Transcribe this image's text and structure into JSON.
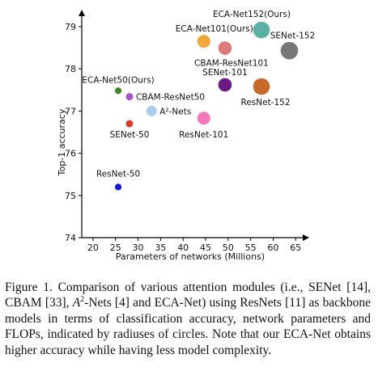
{
  "chart_data": {
    "type": "scatter",
    "xlabel": "Parameters of networks (Millions)",
    "ylabel": "Top-1 accuracy",
    "xlim": [
      17.5,
      68
    ],
    "ylim": [
      74,
      79.4
    ],
    "xticks": [
      "20",
      "25",
      "30",
      "35",
      "40",
      "45",
      "50",
      "55",
      "60",
      "65"
    ],
    "yticks": [
      "74",
      "75",
      "76",
      "77",
      "78",
      "79"
    ],
    "grid": false,
    "points": [
      {
        "label": "ResNet-50",
        "x": 25.6,
        "y": 75.2,
        "size": 4.1,
        "color": "#1515e6"
      },
      {
        "label": "SENet-50",
        "x": 28.1,
        "y": 76.7,
        "size": 4.5,
        "color": "#d93a2b"
      },
      {
        "label": "ECA-Net50(Ours)",
        "x": 25.6,
        "y": 77.48,
        "size": 4.1,
        "color": "#3a8a24"
      },
      {
        "label": "CBAM-ResNet50",
        "x": 28.1,
        "y": 77.34,
        "size": 4.5,
        "color": "#a656c4"
      },
      {
        "label": "A²-Nets",
        "x": 33.0,
        "y": 77.0,
        "size": 6.5,
        "color": "#a9cdef"
      },
      {
        "label": "ResNet-101",
        "x": 44.6,
        "y": 76.83,
        "size": 8.0,
        "color": "#f07ab9"
      },
      {
        "label": "SENet-101",
        "x": 49.3,
        "y": 77.62,
        "size": 8.3,
        "color": "#6a1a80"
      },
      {
        "label": "CBAM-ResNet101",
        "x": 49.3,
        "y": 78.49,
        "size": 8.3,
        "color": "#de7b7b"
      },
      {
        "label": "ECA-Net101(Ours)",
        "x": 44.6,
        "y": 78.65,
        "size": 8.0,
        "color": "#f1a83a"
      },
      {
        "label": "ResNet-152",
        "x": 57.4,
        "y": 77.58,
        "size": 10.3,
        "color": "#c8692c"
      },
      {
        "label": "SENet-152",
        "x": 63.6,
        "y": 78.43,
        "size": 10.8,
        "color": "#777777"
      },
      {
        "label": "ECA-Net152(Ours)",
        "x": 57.4,
        "y": 78.92,
        "size": 10.3,
        "color": "#5bb0a3"
      }
    ]
  },
  "caption": {
    "prefix": "Figure 1. Comparison of various attention modules (i.e., SENet [14], CBAM [33], ",
    "a": "A",
    "sup": "2",
    "suffix": "-Nets [4] and ECA-Net) using ResNets [11] as backbone models in terms of classification accuracy, network parameters and FLOPs, indicated by radiuses of circles. Note that our ECA-Net obtains higher accuracy while having less model complexity."
  }
}
